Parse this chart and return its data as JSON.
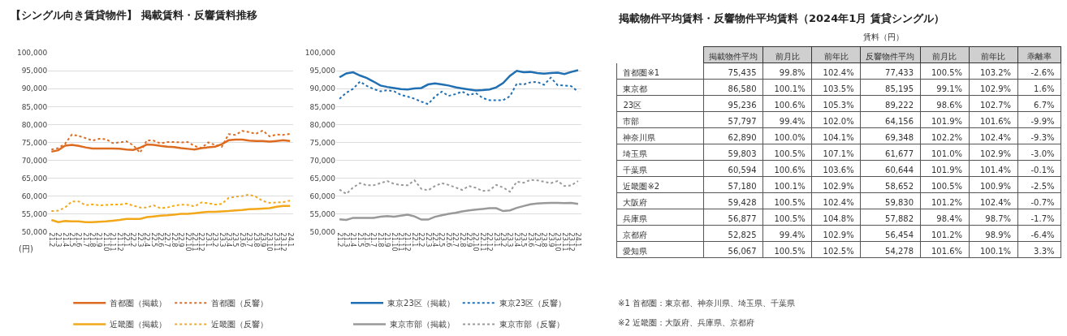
{
  "chart_data": [
    {
      "type": "line",
      "title": "【シングル向き賃貸物件】 掲載賃料・反響賃料推移",
      "ylabel": "(円)",
      "categories": [
        "21.2",
        "21.3",
        "21.4",
        "21.5",
        "21.6",
        "21.7",
        "21.8",
        "21.9",
        "21.10",
        "21.11",
        "21.12",
        "22.1",
        "22.2",
        "22.3",
        "22.4",
        "22.5",
        "22.6",
        "22.7",
        "22.8",
        "22.9",
        "22.10",
        "22.11",
        "22.12",
        "23.1",
        "23.2",
        "23.3",
        "23.4",
        "23.5",
        "23.6",
        "23.7",
        "23.8",
        "23.9",
        "23.10",
        "23.11",
        "23.12",
        "24.1"
      ],
      "series": [
        {
          "name": "首都圏（掲載）",
          "color": "#dd6b20",
          "line_style": "solid",
          "values": [
            72400,
            72800,
            74100,
            74300,
            74000,
            73600,
            73300,
            73300,
            73300,
            73300,
            73200,
            73000,
            72900,
            73500,
            74400,
            74300,
            74000,
            73800,
            73700,
            73400,
            73200,
            73000,
            73400,
            73600,
            73800,
            74500,
            75600,
            75800,
            75800,
            75500,
            75400,
            75400,
            75200,
            75400,
            75600,
            75400
          ]
        },
        {
          "name": "首都圏（反響）",
          "color": "#dd6b20",
          "line_style": "dotted",
          "values": [
            73000,
            73400,
            74600,
            77200,
            76800,
            76200,
            75500,
            76000,
            75900,
            74800,
            75000,
            75300,
            74200,
            72100,
            75600,
            75500,
            74700,
            75100,
            75100,
            75000,
            75100,
            74000,
            73400,
            75000,
            74300,
            73800,
            77300,
            77100,
            78200,
            77900,
            77400,
            78300,
            76700,
            77200,
            77100,
            77400
          ]
        },
        {
          "name": "近畿圏（掲載）",
          "color": "#f2a81a",
          "line_style": "solid",
          "values": [
            53300,
            52700,
            53000,
            52900,
            52900,
            52700,
            52700,
            52800,
            52900,
            53100,
            53300,
            53600,
            53600,
            53600,
            54100,
            54300,
            54500,
            54600,
            54800,
            55000,
            55000,
            55200,
            55400,
            55600,
            55600,
            55700,
            55800,
            56000,
            56100,
            56300,
            56400,
            56500,
            56600,
            57000,
            57200,
            57200
          ]
        },
        {
          "name": "近畿圏（反響）",
          "color": "#f2a81a",
          "line_style": "dotted",
          "values": [
            55800,
            55900,
            56800,
            58500,
            58500,
            57400,
            57700,
            57400,
            57500,
            57600,
            57600,
            57900,
            57300,
            56800,
            56800,
            57400,
            56600,
            56800,
            57300,
            57600,
            57500,
            57100,
            58200,
            58000,
            57600,
            57800,
            59500,
            59800,
            60000,
            60400,
            59800,
            58600,
            58100,
            58200,
            58300,
            58700
          ]
        }
      ],
      "ylim": [
        50000,
        100000
      ],
      "yticks": [
        {
          "value": 50000,
          "label": "50,000"
        },
        {
          "value": 55000,
          "label": "55,000"
        },
        {
          "value": 60000,
          "label": "60,000"
        },
        {
          "value": 65000,
          "label": "65,000"
        },
        {
          "value": 70000,
          "label": "70,000"
        },
        {
          "value": 75000,
          "label": "75,000"
        },
        {
          "value": 80000,
          "label": "80,000"
        },
        {
          "value": 85000,
          "label": "85,000"
        },
        {
          "value": 90000,
          "label": "90,000"
        },
        {
          "value": 95000,
          "label": "95,000"
        },
        {
          "value": 100000,
          "label": "100,000"
        }
      ],
      "grid": "y",
      "legend": "bottom"
    },
    {
      "type": "line",
      "categories": [
        "21.2",
        "21.3",
        "21.4",
        "21.5",
        "21.6",
        "21.7",
        "21.8",
        "21.9",
        "21.10",
        "21.11",
        "21.12",
        "22.1",
        "22.2",
        "22.3",
        "22.4",
        "22.5",
        "22.6",
        "22.7",
        "22.8",
        "22.9",
        "22.10",
        "22.11",
        "22.12",
        "23.1",
        "23.2",
        "23.3",
        "23.4",
        "23.5",
        "23.6",
        "23.7",
        "23.8",
        "23.9",
        "23.10",
        "23.11",
        "23.12",
        "24.1"
      ],
      "series": [
        {
          "name": "東京23区（掲載）",
          "color": "#1f6fb2",
          "line_style": "solid",
          "values": [
            93200,
            94300,
            94600,
            93700,
            93000,
            92000,
            90900,
            90500,
            90200,
            89900,
            89800,
            90100,
            90200,
            91200,
            91500,
            91200,
            90900,
            90400,
            90100,
            89800,
            89500,
            89600,
            89800,
            90400,
            91600,
            93600,
            95000,
            94600,
            94700,
            94400,
            94200,
            94400,
            94500,
            94100,
            94700,
            95200
          ]
        },
        {
          "name": "東京23区（反響）",
          "color": "#1f6fb2",
          "line_style": "dotted",
          "values": [
            87200,
            88900,
            90000,
            92000,
            90800,
            89900,
            89300,
            89600,
            89300,
            88300,
            87800,
            87200,
            86400,
            85700,
            87800,
            89200,
            88000,
            88500,
            89200,
            88200,
            88800,
            87400,
            86800,
            86800,
            86800,
            87900,
            91400,
            91200,
            91800,
            91900,
            91100,
            93100,
            91000,
            90900,
            90700,
            89200
          ]
        },
        {
          "name": "東京市部（掲載）",
          "color": "#999999",
          "line_style": "solid",
          "values": [
            53500,
            53300,
            53900,
            53900,
            53900,
            53900,
            54200,
            54400,
            54200,
            54500,
            54800,
            54300,
            53400,
            53400,
            54200,
            54600,
            55000,
            55300,
            55700,
            56000,
            56200,
            56400,
            56600,
            56600,
            55800,
            56000,
            56700,
            57200,
            57700,
            57900,
            58000,
            58100,
            58100,
            58000,
            58100,
            57800
          ]
        },
        {
          "name": "東京市部（反響）",
          "color": "#999999",
          "line_style": "dotted",
          "values": [
            61800,
            60600,
            62400,
            63600,
            63000,
            63000,
            63600,
            64200,
            63400,
            63100,
            63000,
            64400,
            62000,
            61600,
            62800,
            63600,
            63100,
            62400,
            61700,
            62800,
            62300,
            61400,
            61600,
            63100,
            62400,
            61200,
            64000,
            63700,
            64500,
            64400,
            64000,
            63600,
            64200,
            62800,
            63000,
            64200
          ]
        }
      ],
      "ylim": [
        50000,
        100000
      ],
      "yticks": [
        {
          "value": 50000,
          "label": "50,000"
        },
        {
          "value": 55000,
          "label": "55,000"
        },
        {
          "value": 60000,
          "label": "60,000"
        },
        {
          "value": 65000,
          "label": "65,000"
        },
        {
          "value": 70000,
          "label": "70,000"
        },
        {
          "value": 75000,
          "label": "75,000"
        },
        {
          "value": 80000,
          "label": "80,000"
        },
        {
          "value": 85000,
          "label": "85,000"
        },
        {
          "value": 90000,
          "label": "90,000"
        },
        {
          "value": 95000,
          "label": "95,000"
        },
        {
          "value": 100000,
          "label": "100,000"
        }
      ],
      "grid": "y",
      "legend": "bottom"
    },
    {
      "type": "other",
      "title": "掲載物件平均賃料・反響物件平均賃料（2024年1月 賃貸シングル）",
      "xlabel": "賃料（円）",
      "categories": [
        "掲載物件平均",
        "前月比",
        "前年比",
        "反響物件平均",
        "前月比",
        "前年比",
        "乖離率"
      ],
      "y_categories": [
        "首都圏※1",
        "東京都",
        "23区",
        "市部",
        "神奈川県",
        "埼玉県",
        "千葉県",
        "近畿圏※2",
        "大阪府",
        "兵庫県",
        "京都府",
        "愛知県"
      ],
      "cell_labels": [
        [
          "75,435",
          "99.8%",
          "102.4%",
          "77,433",
          "100.5%",
          "103.2%",
          "-2.6%"
        ],
        [
          "86,580",
          "100.1%",
          "103.5%",
          "85,195",
          "99.1%",
          "102.9%",
          "1.6%"
        ],
        [
          "95,236",
          "100.6%",
          "105.3%",
          "89,222",
          "98.6%",
          "102.7%",
          "6.7%"
        ],
        [
          "57,797",
          "99.4%",
          "102.0%",
          "64,156",
          "101.9%",
          "101.6%",
          "-9.9%"
        ],
        [
          "62,890",
          "100.0%",
          "104.1%",
          "69,348",
          "102.2%",
          "102.4%",
          "-9.3%"
        ],
        [
          "59,803",
          "100.5%",
          "107.1%",
          "61,677",
          "101.0%",
          "102.9%",
          "-3.0%"
        ],
        [
          "60,594",
          "100.6%",
          "103.6%",
          "60,644",
          "101.9%",
          "101.4%",
          "-0.1%"
        ],
        [
          "57,180",
          "100.1%",
          "102.9%",
          "58,652",
          "100.5%",
          "100.9%",
          "-2.5%"
        ],
        [
          "59,428",
          "100.5%",
          "102.4%",
          "59,830",
          "101.2%",
          "102.4%",
          "-0.7%"
        ],
        [
          "56,877",
          "100.5%",
          "104.8%",
          "57,882",
          "98.4%",
          "98.7%",
          "-1.7%"
        ],
        [
          "52,825",
          "99.4%",
          "102.9%",
          "56,454",
          "101.2%",
          "98.9%",
          "-6.4%"
        ],
        [
          "56,067",
          "100.5%",
          "102.5%",
          "54,278",
          "101.6%",
          "100.1%",
          "3.3%"
        ]
      ],
      "annotations": [
        "※1 首都圏：東京都、神奈川県、埼玉県、千葉県",
        "※2 近畿圏：大阪府、兵庫県、京都府"
      ]
    }
  ]
}
